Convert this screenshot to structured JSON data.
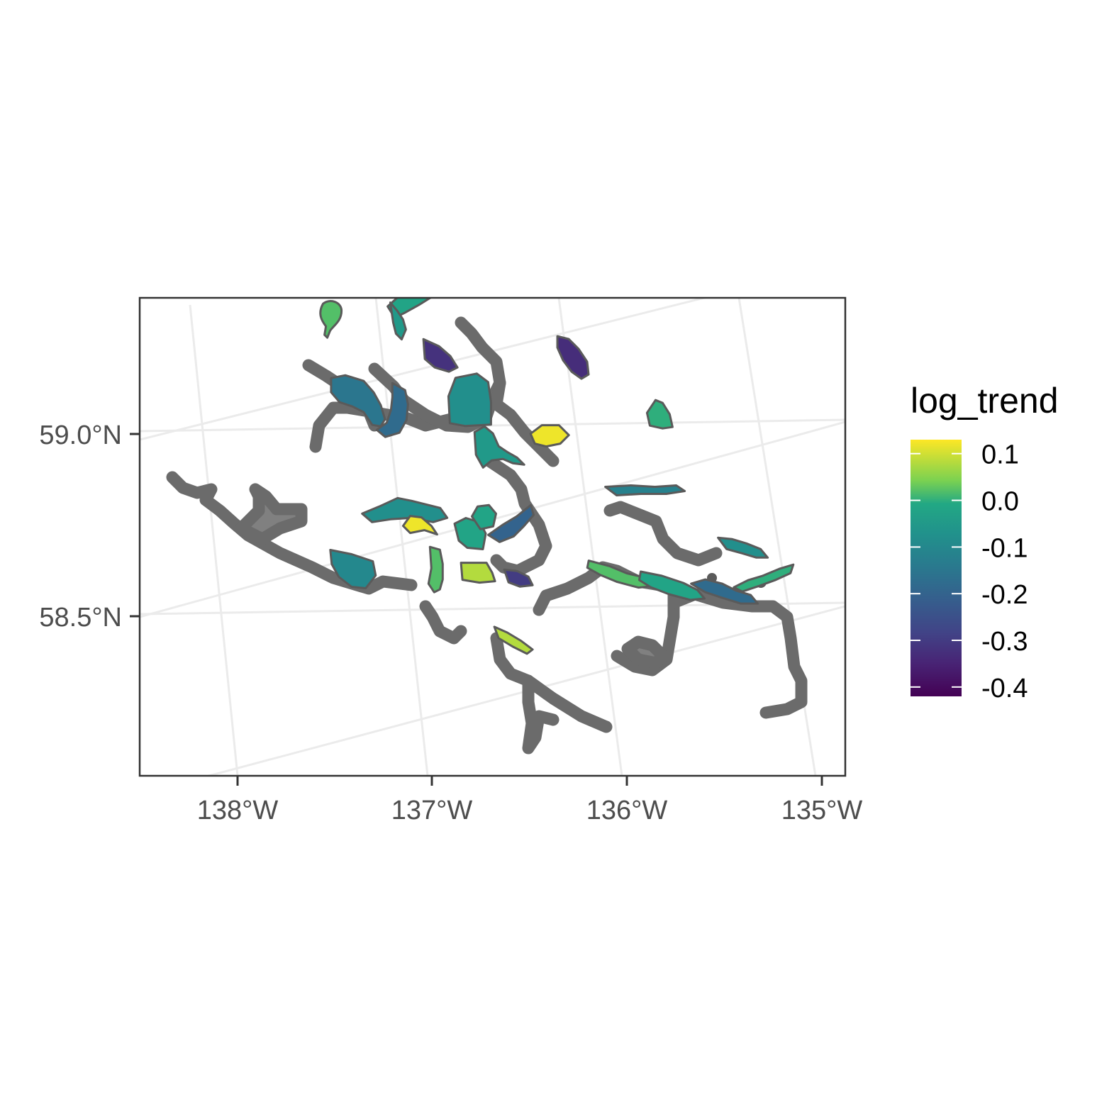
{
  "chart_data": {
    "type": "map",
    "title": "",
    "xlabel": "",
    "ylabel": "",
    "x_ticks": [
      "138°W",
      "137°W",
      "136°W",
      "135°W"
    ],
    "y_ticks": [
      "59.0°N",
      "58.5°N"
    ],
    "xlim": [
      -138.5,
      -134.85
    ],
    "ylim": [
      58.05,
      59.35
    ],
    "grid": true,
    "legend": {
      "title": "log_trend",
      "position": "right",
      "type": "colorbar",
      "colormap": "viridis",
      "range": [
        -0.42,
        0.13
      ],
      "breaks": [
        0.1,
        0.0,
        -0.1,
        -0.2,
        -0.3,
        -0.4
      ],
      "labels": [
        "0.1",
        "0.0",
        "-0.1",
        "-0.2",
        "-0.3",
        "-0.4"
      ]
    },
    "na_color": "#808080",
    "outline_color": "#5a5a5a",
    "regions": [
      {
        "lon": -136.95,
        "lat": 59.18,
        "value": 0.02
      },
      {
        "lon": -136.72,
        "lat": 59.23,
        "value": -0.42
      },
      {
        "lon": -136.5,
        "lat": 59.17,
        "value": -0.02
      },
      {
        "lon": -136.6,
        "lat": 59.1,
        "value": -0.05
      },
      {
        "lon": -136.45,
        "lat": 59.0,
        "value": -0.32
      },
      {
        "lon": -136.9,
        "lat": 58.95,
        "value": -0.15
      },
      {
        "lon": -136.7,
        "lat": 58.88,
        "value": -0.18
      },
      {
        "lon": -136.35,
        "lat": 58.85,
        "value": -0.08
      },
      {
        "lon": -136.3,
        "lat": 58.73,
        "value": -0.05
      },
      {
        "lon": -135.78,
        "lat": 58.9,
        "value": -0.33
      },
      {
        "lon": -135.98,
        "lat": 58.72,
        "value": 0.12
      },
      {
        "lon": -135.4,
        "lat": 58.7,
        "value": 0.0
      },
      {
        "lon": -136.8,
        "lat": 58.62,
        "value": -0.08
      },
      {
        "lon": -136.75,
        "lat": 58.58,
        "value": 0.12
      },
      {
        "lon": -137.1,
        "lat": 58.5,
        "value": -0.1
      },
      {
        "lon": -136.7,
        "lat": 58.45,
        "value": 0.02
      },
      {
        "lon": -136.5,
        "lat": 58.5,
        "value": -0.02
      },
      {
        "lon": -136.5,
        "lat": 58.42,
        "value": 0.08
      },
      {
        "lon": -136.4,
        "lat": 58.55,
        "value": -0.02
      },
      {
        "lon": -136.25,
        "lat": 58.5,
        "value": -0.2
      },
      {
        "lon": -136.3,
        "lat": 58.38,
        "value": -0.3
      },
      {
        "lon": -135.55,
        "lat": 58.52,
        "value": -0.12
      },
      {
        "lon": -135.72,
        "lat": 58.3,
        "value": 0.02
      },
      {
        "lon": -135.5,
        "lat": 58.25,
        "value": -0.02
      },
      {
        "lon": -135.28,
        "lat": 58.22,
        "value": -0.18
      },
      {
        "lon": -135.1,
        "lat": 58.3,
        "value": -0.08
      },
      {
        "lon": -135.05,
        "lat": 58.22,
        "value": 0.0
      },
      {
        "lon": -136.4,
        "lat": 58.22,
        "value": 0.08
      }
    ]
  }
}
